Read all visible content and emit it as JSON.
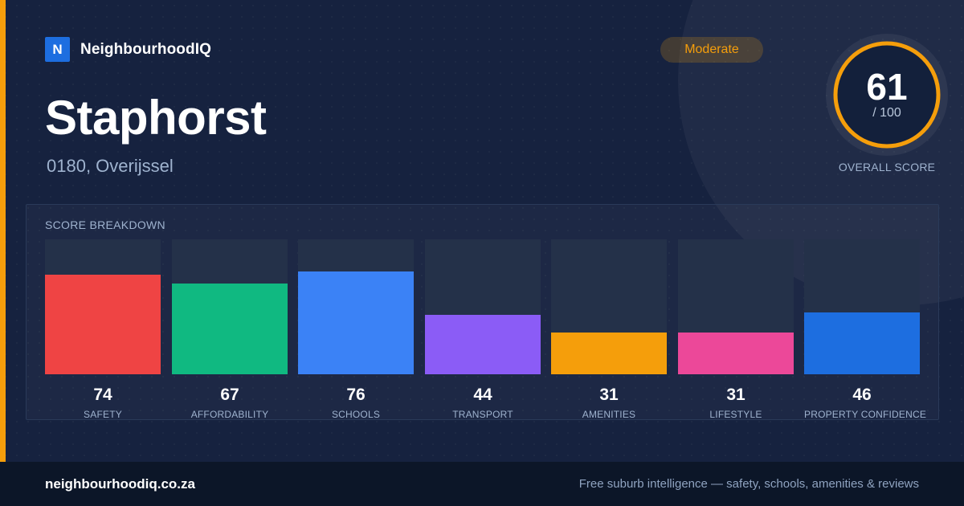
{
  "brand": {
    "logo_letter": "N",
    "name": "NeighbourhoodIQ"
  },
  "suburb": {
    "name": "Staphorst",
    "location": "0180, Overijssel"
  },
  "rating": {
    "label": "Moderate",
    "color": "#f59e0b"
  },
  "overall": {
    "score": "61",
    "max": "/ 100",
    "caption": "OVERALL SCORE",
    "value": 61
  },
  "breakdown": {
    "title": "SCORE BREAKDOWN",
    "items": [
      {
        "label": "SAFETY",
        "value": 74,
        "display": "74",
        "color": "#ef4444"
      },
      {
        "label": "AFFORDABILITY",
        "value": 67,
        "display": "67",
        "color": "#10b981"
      },
      {
        "label": "SCHOOLS",
        "value": 76,
        "display": "76",
        "color": "#3b82f6"
      },
      {
        "label": "TRANSPORT",
        "value": 44,
        "display": "44",
        "color": "#8b5cf6"
      },
      {
        "label": "AMENITIES",
        "value": 31,
        "display": "31",
        "color": "#f59e0b"
      },
      {
        "label": "LIFESTYLE",
        "value": 31,
        "display": "31",
        "color": "#ec4899"
      },
      {
        "label": "PROPERTY CONFIDENCE",
        "value": 46,
        "display": "46",
        "color": "#1d6ee0"
      }
    ]
  },
  "footer": {
    "url": "neighbourhoodiq.co.za",
    "tagline": "Free suburb intelligence — safety, schools, amenities & reviews"
  }
}
